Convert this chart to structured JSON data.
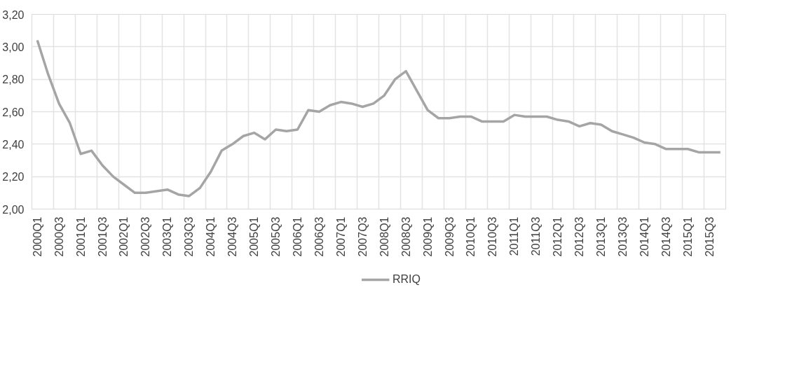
{
  "chart_data": {
    "type": "line",
    "categories": [
      "2000Q1",
      null,
      "2000Q3",
      null,
      "2001Q1",
      null,
      "2001Q3",
      null,
      "2002Q1",
      null,
      "2002Q3",
      null,
      "2003Q1",
      null,
      "2003Q3",
      null,
      "2004Q1",
      null,
      "2004Q3",
      null,
      "2005Q1",
      null,
      "2005Q3",
      null,
      "2006Q1",
      null,
      "2006Q3",
      null,
      "2007Q1",
      null,
      "2007Q3",
      null,
      "2008Q1",
      null,
      "2008Q3",
      null,
      "2009Q1",
      null,
      "2009Q3",
      null,
      "2010Q1",
      null,
      "2010Q3",
      null,
      "2011Q1",
      null,
      "2011Q3",
      null,
      "2012Q1",
      null,
      "2012Q3",
      null,
      "2013Q1",
      null,
      "2013Q3",
      null,
      "2014Q1",
      null,
      "2014Q3",
      null,
      "2015Q1",
      null,
      "2015Q3",
      null
    ],
    "series": [
      {
        "name": "RRIQ",
        "color": "#a5a5a5",
        "values": [
          3.04,
          2.83,
          2.65,
          2.53,
          2.34,
          2.36,
          2.27,
          2.2,
          2.15,
          2.1,
          2.1,
          2.11,
          2.12,
          2.09,
          2.08,
          2.13,
          2.23,
          2.36,
          2.4,
          2.45,
          2.47,
          2.43,
          2.49,
          2.48,
          2.49,
          2.61,
          2.6,
          2.64,
          2.66,
          2.65,
          2.63,
          2.65,
          2.7,
          2.8,
          2.85,
          2.73,
          2.61,
          2.56,
          2.56,
          2.57,
          2.57,
          2.54,
          2.54,
          2.54,
          2.58,
          2.57,
          2.57,
          2.57,
          2.55,
          2.54,
          2.51,
          2.53,
          2.52,
          2.48,
          2.46,
          2.44,
          2.41,
          2.4,
          2.37,
          2.37,
          2.37,
          2.35,
          2.35,
          2.35
        ]
      }
    ],
    "ylim": [
      2.0,
      3.2
    ],
    "yticks": [
      {
        "value": 2.0,
        "label": "2,00"
      },
      {
        "value": 2.2,
        "label": "2,20"
      },
      {
        "value": 2.4,
        "label": "2,40"
      },
      {
        "value": 2.6,
        "label": "2,60"
      },
      {
        "value": 2.8,
        "label": "2,80"
      },
      {
        "value": 3.0,
        "label": "3,00"
      },
      {
        "value": 3.2,
        "label": "3,20"
      }
    ],
    "grid": true,
    "legend": "bottom",
    "marker": "none",
    "line_style": "solid"
  }
}
